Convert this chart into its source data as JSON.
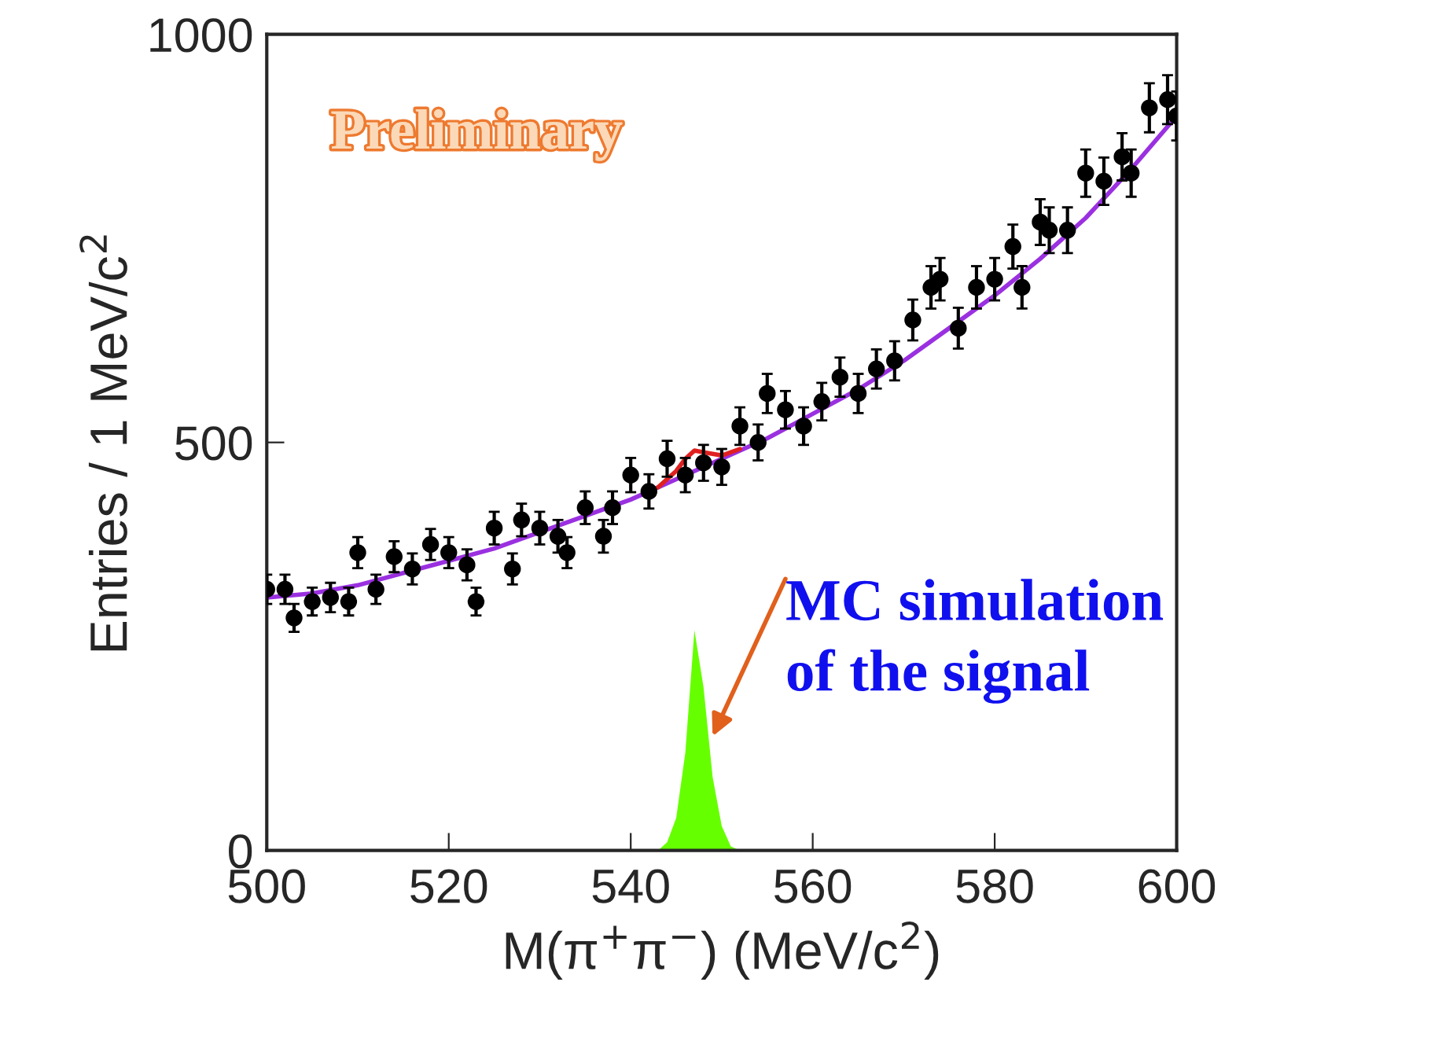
{
  "chart_data": {
    "type": "scatter",
    "xlabel": "M(π$^{+}$π$^{−}$) (MeV/c$^{2}$)",
    "ylabel": "Entries / 1 MeV/c$^{2}$",
    "xlim": [
      500,
      600
    ],
    "xticks": [
      500,
      520,
      540,
      560,
      580,
      600
    ],
    "ylim": [
      0,
      1000
    ],
    "yticks": [
      0,
      500,
      1000
    ],
    "grid": false,
    "legend": false,
    "series": [
      {
        "type": "area",
        "color": "#66ff00",
        "x": [
          543,
          544,
          545,
          546,
          547,
          548,
          549,
          550,
          551,
          552
        ],
        "values": [
          0,
          10,
          40,
          120,
          270,
          200,
          90,
          30,
          5,
          0
        ]
      },
      {
        "type": "line",
        "color": "#9a30e0",
        "x": [
          500,
          505,
          510,
          515,
          520,
          525,
          530,
          535,
          540,
          545,
          550,
          555,
          560,
          565,
          570,
          575,
          580,
          585,
          590,
          595,
          600
        ],
        "values": [
          310,
          315,
          325,
          340,
          355,
          370,
          390,
          410,
          430,
          455,
          480,
          505,
          535,
          565,
          600,
          640,
          680,
          725,
          775,
          835,
          900
        ]
      },
      {
        "type": "line",
        "color": "#e02020",
        "x": [
          543,
          545,
          546,
          547,
          548,
          550,
          552
        ],
        "values": [
          445,
          465,
          480,
          490,
          488,
          484,
          492
        ]
      },
      {
        "color": "#000000",
        "marker": "circle",
        "x": [
          500,
          502,
          503,
          505,
          507,
          509,
          510,
          512,
          514,
          516,
          518,
          520,
          522,
          523,
          525,
          527,
          528,
          530,
          532,
          533,
          535,
          537,
          538,
          540,
          542,
          544,
          546,
          548,
          550,
          552,
          554,
          555,
          557,
          559,
          561,
          563,
          565,
          567,
          569,
          571,
          573,
          574,
          576,
          578,
          580,
          582,
          583,
          585,
          586,
          588,
          590,
          592,
          594,
          595,
          597,
          599,
          600
        ],
        "values": [
          320,
          320,
          285,
          305,
          310,
          305,
          365,
          320,
          360,
          345,
          375,
          365,
          350,
          305,
          395,
          345,
          405,
          395,
          385,
          365,
          420,
          385,
          420,
          460,
          440,
          480,
          460,
          475,
          470,
          520,
          500,
          560,
          540,
          520,
          550,
          580,
          560,
          590,
          600,
          650,
          690,
          700,
          640,
          690,
          700,
          740,
          690,
          770,
          760,
          760,
          830,
          820,
          850,
          830,
          910,
          920,
          900
        ],
        "errors": [
          18,
          18,
          17,
          17,
          18,
          17,
          19,
          18,
          19,
          19,
          19,
          19,
          19,
          17,
          20,
          19,
          20,
          20,
          20,
          19,
          20,
          20,
          20,
          21,
          21,
          22,
          21,
          22,
          22,
          23,
          22,
          24,
          23,
          23,
          23,
          24,
          24,
          24,
          24,
          25,
          26,
          26,
          25,
          26,
          26,
          27,
          26,
          28,
          28,
          28,
          29,
          29,
          29,
          29,
          30,
          30,
          30
        ]
      }
    ],
    "annotations": [
      "Preliminary",
      {
        "text": "MC simulation\nof the signal",
        "x": 549,
        "y": 140
      }
    ]
  }
}
